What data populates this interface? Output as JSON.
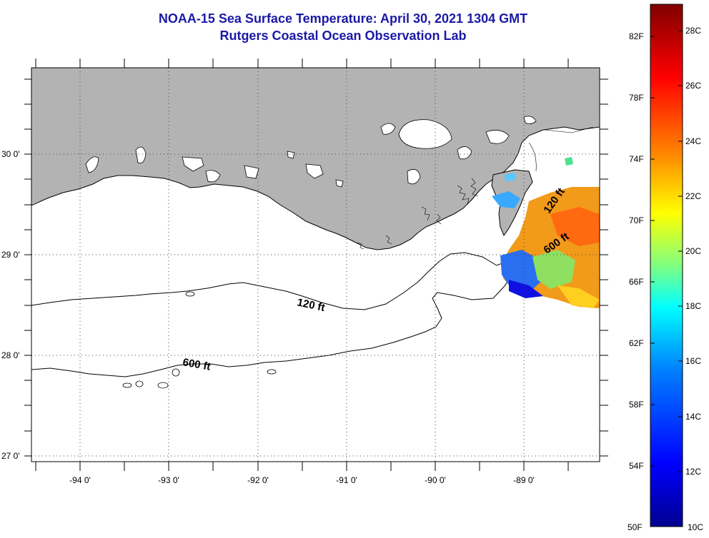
{
  "title": {
    "line1": "NOAA-15 Sea Surface Temperature:  April 30, 2021 1304 GMT",
    "line2": "Rutgers Coastal Ocean Observation Lab"
  },
  "map": {
    "lon_ticks": [
      "-94 0'",
      "-93 0'",
      "-92 0'",
      "-91 0'",
      "-90 0'",
      "-89 0'"
    ],
    "lat_ticks": [
      "30 0'",
      "29 0'",
      "28 0'",
      "27 0'"
    ],
    "contours": {
      "shallow": "120 ft",
      "deep": "600 ft"
    },
    "colors": {
      "land": "#b3b3b3",
      "water": "#ffffff"
    }
  },
  "colorbar": {
    "fahrenheit": [
      "82F",
      "78F",
      "74F",
      "70F",
      "66F",
      "62F",
      "58F",
      "54F",
      "50F"
    ],
    "celsius": [
      "28C",
      "26C",
      "24C",
      "22C",
      "20C",
      "18C",
      "16C",
      "14C",
      "12C",
      "10C"
    ],
    "gradient": [
      "#00008f",
      "#0000ff",
      "#0080ff",
      "#00ffff",
      "#80ff80",
      "#ffff00",
      "#ff8000",
      "#ff0000",
      "#800000"
    ]
  }
}
